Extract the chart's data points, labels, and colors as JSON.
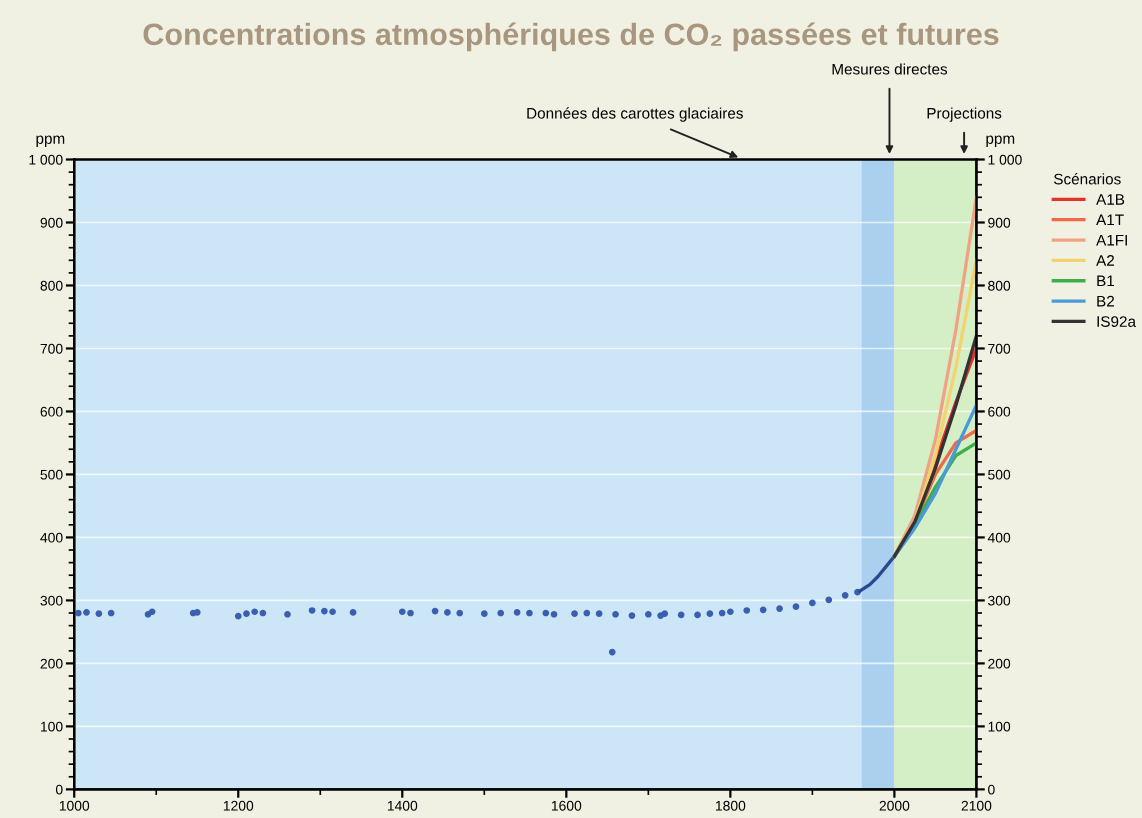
{
  "chart_data": {
    "type": "line",
    "title": "Concentrations atmosphériques de CO₂ passées et futures",
    "ylabel": "ppm",
    "y2label": "ppm",
    "legend_title": "Scénarios",
    "xlim": [
      1000,
      2100
    ],
    "xticks": [
      1000,
      1200,
      1400,
      1600,
      1800,
      2000,
      2100
    ],
    "ylim": [
      0,
      1000
    ],
    "yticks": [
      0,
      100,
      200,
      300,
      400,
      500,
      600,
      700,
      800,
      900,
      {
        "value": 1000,
        "label": "1 000"
      }
    ],
    "y2lim": [
      0,
      1000
    ],
    "y2ticks": [
      0,
      100,
      200,
      300,
      400,
      500,
      600,
      700,
      800,
      900,
      {
        "value": 1000,
        "label": "1 000"
      }
    ],
    "grid": "y",
    "legend": "right",
    "marker": "none",
    "line_style": "solid",
    "bands": [
      {
        "axis": "x",
        "from": 1000,
        "to": 1960,
        "label": "Données des carottes glaciaires",
        "color": "#cde6f7"
      },
      {
        "axis": "x",
        "from": 1960,
        "to": 2000,
        "label": "Mesures directes",
        "color": "#a9d0ef"
      },
      {
        "axis": "x",
        "from": 2000,
        "to": 2100,
        "label": "Projections",
        "color": "#d4efc6"
      }
    ],
    "series": [
      {
        "type": "scatter",
        "color": "#3a5fb0",
        "x": [
          1005,
          1015,
          1030,
          1045,
          1090,
          1095,
          1145,
          1150,
          1200,
          1210,
          1220,
          1230,
          1260,
          1290,
          1305,
          1315,
          1340,
          1400,
          1410,
          1440,
          1455,
          1470,
          1500,
          1520,
          1540,
          1555,
          1575,
          1585,
          1610,
          1625,
          1640,
          1656,
          1660,
          1680,
          1700,
          1715,
          1720,
          1740,
          1760,
          1775,
          1790,
          1800,
          1820,
          1840,
          1860,
          1880,
          1900,
          1920,
          1940,
          1955
        ],
        "values": [
          280,
          281,
          279,
          280,
          278,
          282,
          280,
          281,
          275,
          279,
          282,
          280,
          278,
          284,
          283,
          282,
          281,
          282,
          280,
          283,
          281,
          280,
          279,
          280,
          281,
          280,
          280,
          278,
          279,
          280,
          279,
          218,
          278,
          276,
          278,
          276,
          279,
          277,
          277,
          279,
          280,
          282,
          284,
          285,
          287,
          290,
          296,
          301,
          308,
          313
        ]
      },
      {
        "color": "#2a4a90",
        "x": [
          1958,
          1970,
          1980,
          1990,
          2000
        ],
        "values": [
          315,
          325,
          338,
          354,
          370
        ]
      },
      {
        "name": "A1B",
        "color": "#e2332b",
        "x": [
          2000,
          2025,
          2050,
          2075,
          2100
        ],
        "values": [
          370,
          430,
          520,
          615,
          700
        ]
      },
      {
        "name": "A1T",
        "color": "#f06a4a",
        "x": [
          2000,
          2025,
          2050,
          2075,
          2100
        ],
        "values": [
          370,
          425,
          500,
          550,
          570
        ]
      },
      {
        "name": "A1FI",
        "color": "#f2a283",
        "x": [
          2000,
          2025,
          2050,
          2075,
          2100
        ],
        "values": [
          370,
          435,
          555,
          730,
          940
        ]
      },
      {
        "name": "A2",
        "color": "#f3d36b",
        "x": [
          2000,
          2025,
          2050,
          2075,
          2100
        ],
        "values": [
          370,
          425,
          530,
          670,
          840
        ]
      },
      {
        "name": "B1",
        "color": "#3fae4a",
        "x": [
          2000,
          2025,
          2050,
          2075,
          2100
        ],
        "values": [
          370,
          420,
          480,
          530,
          550
        ]
      },
      {
        "name": "B2",
        "color": "#4a9ad8",
        "x": [
          2000,
          2025,
          2050,
          2075,
          2100
        ],
        "values": [
          370,
          415,
          470,
          540,
          610
        ]
      },
      {
        "name": "IS92a",
        "color": "#333333",
        "x": [
          2000,
          2025,
          2050,
          2075,
          2100
        ],
        "values": [
          370,
          425,
          510,
          610,
          720
        ]
      }
    ]
  }
}
